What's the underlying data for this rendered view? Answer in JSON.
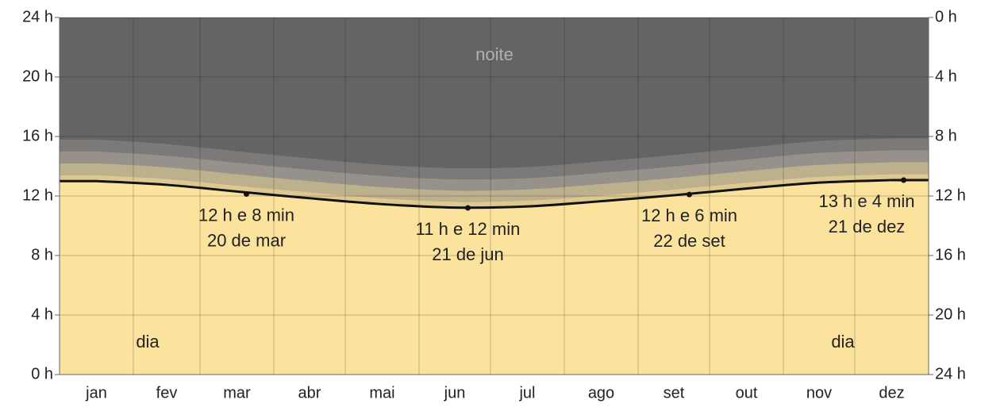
{
  "chart_data": {
    "type": "daylight",
    "night_label": "noite",
    "day_label": "dia",
    "categories": [
      "jan",
      "fev",
      "mar",
      "abr",
      "mai",
      "jun",
      "jul",
      "ago",
      "set",
      "out",
      "nov",
      "dez"
    ],
    "series": [
      {
        "name": "dia",
        "color": "#fbe29d",
        "values": [
          13.0,
          12.75,
          12.3,
          11.85,
          11.45,
          11.22,
          11.3,
          11.65,
          12.05,
          12.5,
          12.9,
          13.07
        ]
      },
      {
        "color": "#dcc890",
        "values": [
          0.4,
          0.4,
          0.4,
          0.4,
          0.4,
          0.4,
          0.4,
          0.4,
          0.4,
          0.4,
          0.4,
          0.4
        ]
      },
      {
        "color": "#bdb08c",
        "values": [
          0.8,
          0.78,
          0.77,
          0.76,
          0.75,
          0.75,
          0.75,
          0.76,
          0.77,
          0.78,
          0.8,
          0.8
        ]
      },
      {
        "color": "#96918a",
        "values": [
          0.8,
          0.78,
          0.77,
          0.76,
          0.75,
          0.75,
          0.75,
          0.76,
          0.77,
          0.78,
          0.8,
          0.8
        ]
      },
      {
        "color": "#7c7a78",
        "values": [
          0.8,
          0.78,
          0.77,
          0.76,
          0.75,
          0.75,
          0.75,
          0.76,
          0.77,
          0.78,
          0.8,
          0.8
        ]
      }
    ],
    "night_color": "#646464",
    "line_color": "#111111",
    "annotations": [
      {
        "value": 12.133,
        "value_label": "12 h e 8 min",
        "date": "20 de mar"
      },
      {
        "value": 11.2,
        "value_label": "11 h e 12 min",
        "date": "21 de jun"
      },
      {
        "value": 12.1,
        "value_label": "12 h e 6 min",
        "date": "22 de set"
      },
      {
        "value": 13.067,
        "value_label": "13 h e 4 min",
        "date": "21 de dez"
      }
    ],
    "ylim": [
      0,
      24
    ],
    "yticks": [
      {
        "value": 0,
        "label": "0 h"
      },
      {
        "value": 4,
        "label": "4 h"
      },
      {
        "value": 8,
        "label": "8 h"
      },
      {
        "value": 12,
        "label": "12 h"
      },
      {
        "value": 16,
        "label": "16 h"
      },
      {
        "value": 20,
        "label": "20 h"
      },
      {
        "value": 24,
        "label": "24 h"
      }
    ],
    "y2lim": [
      24,
      0
    ],
    "y2ticks": [
      {
        "value": 0,
        "label": "0 h"
      },
      {
        "value": 4,
        "label": "4 h"
      },
      {
        "value": 8,
        "label": "8 h"
      },
      {
        "value": 12,
        "label": "12 h"
      },
      {
        "value": 16,
        "label": "16 h"
      },
      {
        "value": 20,
        "label": "20 h"
      },
      {
        "value": 24,
        "label": "24 h"
      }
    ],
    "grid": true
  }
}
